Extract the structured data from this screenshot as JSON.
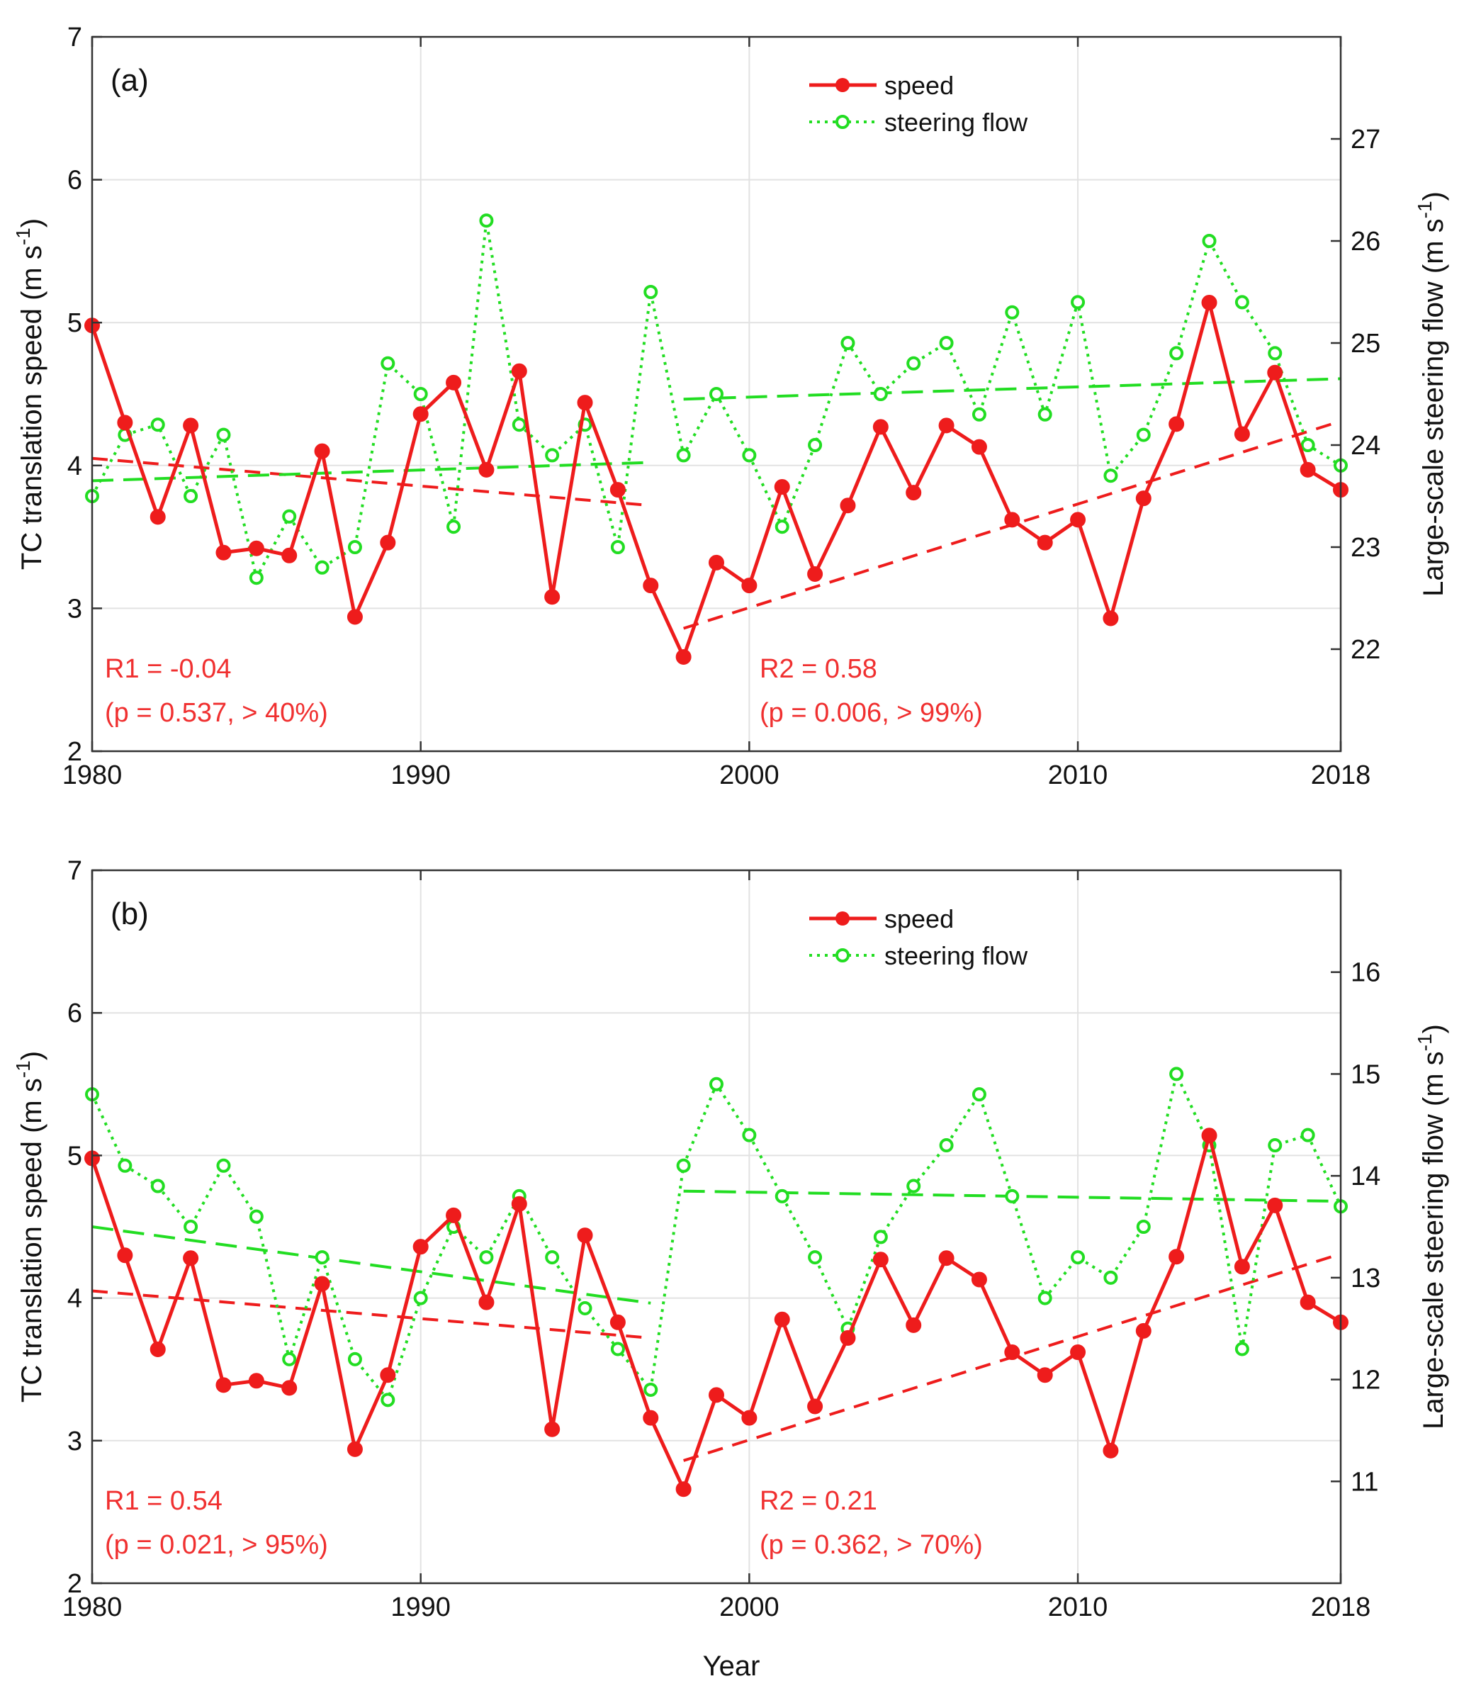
{
  "figure": {
    "xlabel": "Year"
  },
  "chart_data": [
    {
      "type": "line",
      "panel_label": "(a)",
      "xlim": [
        1980,
        2018
      ],
      "x_ticks": [
        1980,
        1990,
        2000,
        2010,
        2018
      ],
      "ylim_left": [
        2,
        7
      ],
      "y_ticks_left": [
        2,
        3,
        4,
        5,
        6,
        7
      ],
      "ylim_right": [
        21.0,
        28.0
      ],
      "y_ticks_right": [
        22,
        23,
        24,
        25,
        26,
        27
      ],
      "ylabel_left": "TC translation speed (m s",
      "ylabel_right": "Large-scale steering flow (m s",
      "ylabel_sup": "-1",
      "ylabel_close": ")",
      "grid": true,
      "legend_position": "top-center",
      "colors": {
        "speed": "#ee1c1c",
        "steering": "#22dd22"
      },
      "x": [
        1980,
        1981,
        1982,
        1983,
        1984,
        1985,
        1986,
        1987,
        1988,
        1989,
        1990,
        1991,
        1992,
        1993,
        1994,
        1995,
        1996,
        1997,
        1998,
        1999,
        2000,
        2001,
        2002,
        2003,
        2004,
        2005,
        2006,
        2007,
        2008,
        2009,
        2010,
        2011,
        2012,
        2013,
        2014,
        2015,
        2016,
        2017,
        2018
      ],
      "series": [
        {
          "name": "speed",
          "axis": "left",
          "values": [
            4.98,
            4.3,
            3.64,
            4.28,
            3.39,
            3.42,
            3.37,
            4.1,
            2.94,
            3.46,
            4.36,
            4.58,
            3.97,
            4.66,
            3.08,
            4.44,
            3.83,
            3.16,
            2.66,
            3.32,
            3.16,
            3.85,
            3.24,
            3.72,
            4.27,
            3.81,
            4.28,
            4.13,
            3.62,
            3.46,
            3.62,
            2.93,
            3.77,
            4.29,
            5.14,
            4.22,
            4.65,
            3.97,
            3.83
          ]
        },
        {
          "name": "steering flow",
          "axis": "right",
          "values": [
            23.5,
            24.1,
            24.2,
            23.5,
            24.1,
            22.7,
            23.3,
            22.8,
            23.0,
            24.8,
            24.5,
            23.2,
            26.2,
            24.2,
            23.9,
            24.2,
            23.0,
            25.5,
            23.9,
            24.5,
            23.9,
            23.2,
            24.0,
            25.0,
            24.5,
            24.8,
            25.0,
            24.3,
            25.3,
            24.3,
            25.4,
            23.7,
            24.1,
            24.9,
            26.0,
            25.4,
            24.9,
            24.0,
            23.8
          ]
        }
      ],
      "trend_lines": [
        {
          "series": "speed",
          "x": [
            1980,
            1997
          ],
          "y": [
            4.05,
            3.72
          ]
        },
        {
          "series": "speed",
          "x": [
            1998,
            2018
          ],
          "y": [
            2.86,
            4.31
          ]
        },
        {
          "series": "steering flow",
          "x": [
            1980,
            1997
          ],
          "y": [
            23.65,
            23.83
          ]
        },
        {
          "series": "steering flow",
          "x": [
            1998,
            2018
          ],
          "y": [
            24.45,
            24.65
          ]
        }
      ],
      "annotations": {
        "r1": "R1 = -0.04",
        "p1": "(p = 0.537, > 40%)",
        "r2": "R2 = 0.58",
        "p2": "(p = 0.006, > 99%)"
      }
    },
    {
      "type": "line",
      "panel_label": "(b)",
      "xlim": [
        1980,
        2018
      ],
      "x_ticks": [
        1980,
        1990,
        2000,
        2010,
        2018
      ],
      "ylim_left": [
        2,
        7
      ],
      "y_ticks_left": [
        2,
        3,
        4,
        5,
        6,
        7
      ],
      "ylim_right": [
        10.0,
        17.0
      ],
      "y_ticks_right": [
        11,
        12,
        13,
        14,
        15,
        16
      ],
      "ylabel_left": "TC translation speed (m s",
      "ylabel_right": "Large-scale steering flow (m s",
      "ylabel_sup": "-1",
      "ylabel_close": ")",
      "grid": true,
      "legend_position": "top-center",
      "colors": {
        "speed": "#ee1c1c",
        "steering": "#22dd22"
      },
      "x": [
        1980,
        1981,
        1982,
        1983,
        1984,
        1985,
        1986,
        1987,
        1988,
        1989,
        1990,
        1991,
        1992,
        1993,
        1994,
        1995,
        1996,
        1997,
        1998,
        1999,
        2000,
        2001,
        2002,
        2003,
        2004,
        2005,
        2006,
        2007,
        2008,
        2009,
        2010,
        2011,
        2012,
        2013,
        2014,
        2015,
        2016,
        2017,
        2018
      ],
      "series": [
        {
          "name": "speed",
          "axis": "left",
          "values": [
            4.98,
            4.3,
            3.64,
            4.28,
            3.39,
            3.42,
            3.37,
            4.1,
            2.94,
            3.46,
            4.36,
            4.58,
            3.97,
            4.66,
            3.08,
            4.44,
            3.83,
            3.16,
            2.66,
            3.32,
            3.16,
            3.85,
            3.24,
            3.72,
            4.27,
            3.81,
            4.28,
            4.13,
            3.62,
            3.46,
            3.62,
            2.93,
            3.77,
            4.29,
            5.14,
            4.22,
            4.65,
            3.97,
            3.83
          ]
        },
        {
          "name": "steering flow",
          "axis": "right",
          "values": [
            14.8,
            14.1,
            13.9,
            13.5,
            14.1,
            13.6,
            12.2,
            13.2,
            12.2,
            11.8,
            12.8,
            13.5,
            13.2,
            13.8,
            13.2,
            12.7,
            12.3,
            11.9,
            14.1,
            14.9,
            14.4,
            13.8,
            13.2,
            12.5,
            13.4,
            13.9,
            14.3,
            14.8,
            13.8,
            12.8,
            13.2,
            13.0,
            13.5,
            15.0,
            14.3,
            12.3,
            14.3,
            14.4,
            13.7
          ]
        }
      ],
      "trend_lines": [
        {
          "series": "speed",
          "x": [
            1980,
            1997
          ],
          "y": [
            4.05,
            3.72
          ]
        },
        {
          "series": "speed",
          "x": [
            1998,
            2018
          ],
          "y": [
            2.86,
            4.31
          ]
        },
        {
          "series": "steering flow",
          "x": [
            1980,
            1997
          ],
          "y": [
            13.5,
            12.75
          ]
        },
        {
          "series": "steering flow",
          "x": [
            1998,
            2018
          ],
          "y": [
            13.85,
            13.75
          ]
        }
      ],
      "annotations": {
        "r1": "R1 = 0.54",
        "p1": "(p = 0.021, > 95%)",
        "r2": "R2 = 0.21",
        "p2": "(p = 0.362, > 70%)"
      }
    }
  ]
}
